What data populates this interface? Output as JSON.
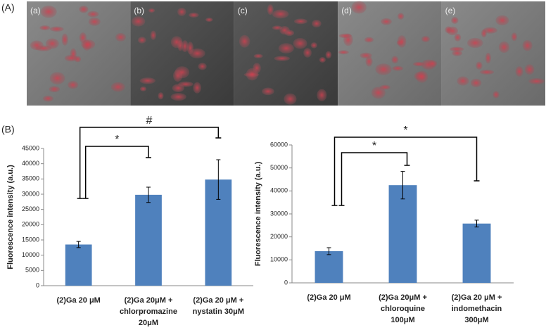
{
  "figure": {
    "panel_labels": [
      "(A)",
      "(B)"
    ],
    "image_labels": [
      "(a)",
      "(b)",
      "(c)",
      "(d)",
      "(e)"
    ]
  },
  "chart_data": [
    {
      "type": "bar",
      "y_label": "Fluorescence intensity (a.u.)",
      "categories": [
        [
          "(2)Ga 20 μM"
        ],
        [
          "(2)Ga 20μM +",
          "chlorpromazine",
          "20μM"
        ],
        [
          "(2)Ga 20 μM +",
          "nystatin 30μM"
        ]
      ],
      "values": [
        13500,
        29800,
        34800
      ],
      "errors": [
        1000,
        2500,
        6500
      ],
      "color": "#4f81bd",
      "ylim": [
        0,
        45000
      ],
      "yticks": [
        0,
        5000,
        10000,
        15000,
        20000,
        25000,
        30000,
        35000,
        40000,
        45000
      ],
      "annotations": [
        "*",
        "#"
      ]
    },
    {
      "type": "bar",
      "y_label": "Fluorescence intensity (a.u.)",
      "categories": [
        [
          "(2)Ga 20 μM"
        ],
        [
          "(2)Ga 20μM +",
          "chloroquine",
          "100μM"
        ],
        [
          "(2)Ga 20 μM +",
          "indomethacin",
          "300μM"
        ]
      ],
      "values": [
        13800,
        42500,
        25800
      ],
      "errors": [
        1500,
        6000,
        1500
      ],
      "color": "#4f81bd",
      "ylim": [
        0,
        60000
      ],
      "yticks": [
        0,
        10000,
        20000,
        30000,
        40000,
        50000,
        60000
      ],
      "annotations": [
        "*",
        "*"
      ]
    }
  ]
}
